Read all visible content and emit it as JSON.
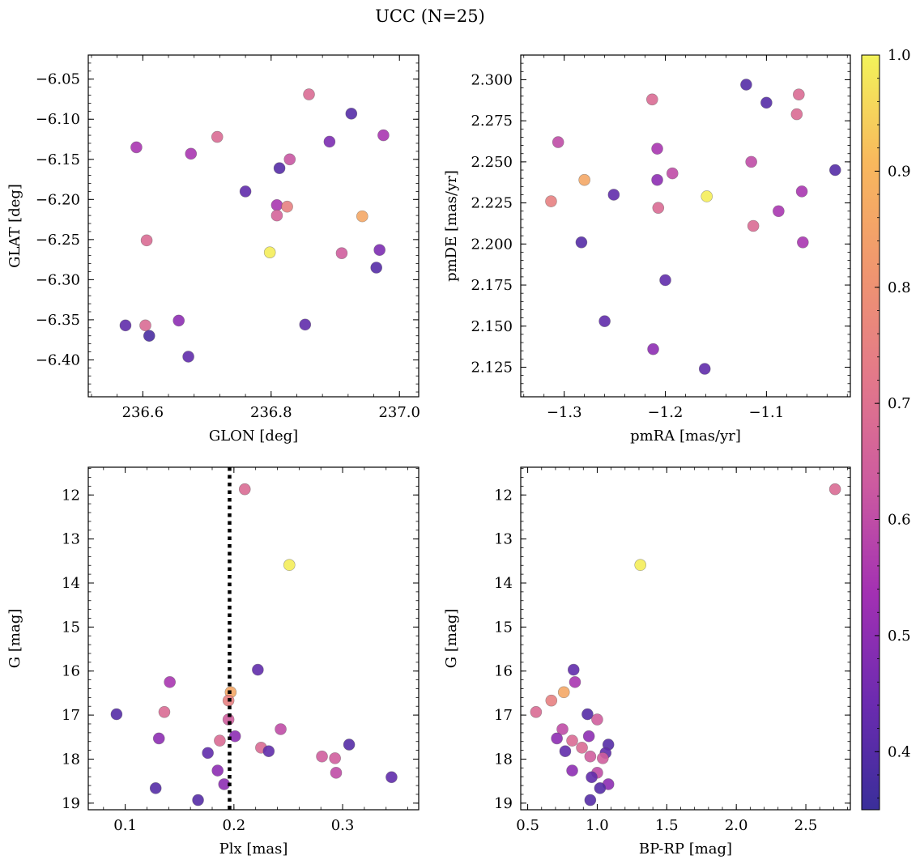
{
  "figure": {
    "title": "UCC (N=25)"
  },
  "colorbar": {
    "min": 0.35,
    "max": 1.0,
    "ticks": [
      0.4,
      0.5,
      0.6,
      0.7,
      0.8,
      0.9,
      1.0
    ],
    "tick_labels": [
      "0.4",
      "0.5",
      "0.6",
      "0.7",
      "0.8",
      "0.9",
      "1.0"
    ],
    "colormap": "plasma-truncated",
    "stops": [
      "#3a2e9a",
      "#6c2bb0",
      "#a230b3",
      "#cc5aa0",
      "#e3788a",
      "#f0966f",
      "#f8b85d",
      "#f3f35a"
    ]
  },
  "chart_data": [
    {
      "type": "scatter",
      "title": "",
      "xlabel": "GLON [deg]",
      "ylabel": "GLAT [deg]",
      "xlim": [
        236.515,
        237.03
      ],
      "ylim": [
        -6.446,
        -6.02
      ],
      "xticks": [
        236.6,
        236.8,
        237.0
      ],
      "xtick_labels": [
        "236.6",
        "236.8",
        "237.0"
      ],
      "yticks": [
        -6.05,
        -6.1,
        -6.15,
        -6.2,
        -6.25,
        -6.3,
        -6.35,
        -6.4
      ],
      "ytick_labels": [
        "−6.05",
        "−6.10",
        "−6.15",
        "−6.20",
        "−6.25",
        "−6.30",
        "−6.35",
        "−6.40"
      ],
      "points": [
        {
          "x": 236.859,
          "y": -6.069,
          "c": 0.68
        },
        {
          "x": 236.925,
          "y": -6.093,
          "c": 0.4
        },
        {
          "x": 236.975,
          "y": -6.12,
          "c": 0.55
        },
        {
          "x": 236.716,
          "y": -6.122,
          "c": 0.68
        },
        {
          "x": 236.891,
          "y": -6.128,
          "c": 0.47
        },
        {
          "x": 236.59,
          "y": -6.135,
          "c": 0.55
        },
        {
          "x": 236.675,
          "y": -6.143,
          "c": 0.55
        },
        {
          "x": 236.829,
          "y": -6.15,
          "c": 0.62
        },
        {
          "x": 236.813,
          "y": -6.161,
          "c": 0.4
        },
        {
          "x": 236.76,
          "y": -6.19,
          "c": 0.42
        },
        {
          "x": 236.809,
          "y": -6.207,
          "c": 0.55
        },
        {
          "x": 236.825,
          "y": -6.209,
          "c": 0.75
        },
        {
          "x": 236.809,
          "y": -6.22,
          "c": 0.66
        },
        {
          "x": 236.942,
          "y": -6.221,
          "c": 0.86
        },
        {
          "x": 236.606,
          "y": -6.251,
          "c": 0.68
        },
        {
          "x": 236.969,
          "y": -6.263,
          "c": 0.47
        },
        {
          "x": 236.798,
          "y": -6.266,
          "c": 0.99
        },
        {
          "x": 236.91,
          "y": -6.267,
          "c": 0.64
        },
        {
          "x": 236.964,
          "y": -6.285,
          "c": 0.4
        },
        {
          "x": 236.656,
          "y": -6.351,
          "c": 0.5
        },
        {
          "x": 236.853,
          "y": -6.356,
          "c": 0.42
        },
        {
          "x": 236.573,
          "y": -6.357,
          "c": 0.42
        },
        {
          "x": 236.604,
          "y": -6.357,
          "c": 0.68
        },
        {
          "x": 236.61,
          "y": -6.37,
          "c": 0.38
        },
        {
          "x": 236.671,
          "y": -6.396,
          "c": 0.42
        }
      ]
    },
    {
      "type": "scatter",
      "title": "",
      "xlabel": "pmRA [mas/yr]",
      "ylabel": "pmDE [mas/yr]",
      "xlim": [
        -1.343,
        -1.017
      ],
      "ylim": [
        2.107,
        2.315
      ],
      "xticks": [
        -1.3,
        -1.2,
        -1.1
      ],
      "xtick_labels": [
        "−1.3",
        "−1.2",
        "−1.1"
      ],
      "yticks": [
        2.125,
        2.15,
        2.175,
        2.2,
        2.225,
        2.25,
        2.275,
        2.3
      ],
      "ytick_labels": [
        "2.125",
        "2.150",
        "2.175",
        "2.200",
        "2.225",
        "2.250",
        "2.275",
        "2.300"
      ],
      "points": [
        {
          "x": -1.12,
          "y": 2.297,
          "c": 0.4
        },
        {
          "x": -1.068,
          "y": 2.291,
          "c": 0.68
        },
        {
          "x": -1.213,
          "y": 2.288,
          "c": 0.68
        },
        {
          "x": -1.1,
          "y": 2.286,
          "c": 0.4
        },
        {
          "x": -1.07,
          "y": 2.279,
          "c": 0.68
        },
        {
          "x": -1.306,
          "y": 2.262,
          "c": 0.6
        },
        {
          "x": -1.208,
          "y": 2.258,
          "c": 0.55
        },
        {
          "x": -1.115,
          "y": 2.25,
          "c": 0.6
        },
        {
          "x": -1.032,
          "y": 2.245,
          "c": 0.4
        },
        {
          "x": -1.193,
          "y": 2.243,
          "c": 0.6
        },
        {
          "x": -1.28,
          "y": 2.239,
          "c": 0.86
        },
        {
          "x": -1.208,
          "y": 2.239,
          "c": 0.5
        },
        {
          "x": -1.065,
          "y": 2.232,
          "c": 0.55
        },
        {
          "x": -1.251,
          "y": 2.23,
          "c": 0.42
        },
        {
          "x": -1.159,
          "y": 2.229,
          "c": 0.99
        },
        {
          "x": -1.313,
          "y": 2.226,
          "c": 0.75
        },
        {
          "x": -1.207,
          "y": 2.222,
          "c": 0.68
        },
        {
          "x": -1.088,
          "y": 2.22,
          "c": 0.55
        },
        {
          "x": -1.113,
          "y": 2.211,
          "c": 0.68
        },
        {
          "x": -1.283,
          "y": 2.201,
          "c": 0.4
        },
        {
          "x": -1.064,
          "y": 2.201,
          "c": 0.55
        },
        {
          "x": -1.2,
          "y": 2.178,
          "c": 0.42
        },
        {
          "x": -1.26,
          "y": 2.153,
          "c": 0.42
        },
        {
          "x": -1.212,
          "y": 2.136,
          "c": 0.5
        },
        {
          "x": -1.161,
          "y": 2.124,
          "c": 0.42
        }
      ]
    },
    {
      "type": "scatter",
      "title": "",
      "xlabel": "Plx [mas]",
      "ylabel": "G [mag]",
      "xlim": [
        0.066,
        0.37
      ],
      "ylim": [
        19.15,
        11.37
      ],
      "y_inverted": true,
      "xticks": [
        0.1,
        0.2,
        0.3
      ],
      "xtick_labels": [
        "0.1",
        "0.2",
        "0.3"
      ],
      "yticks": [
        12,
        13,
        14,
        15,
        16,
        17,
        18,
        19
      ],
      "ytick_labels": [
        "12",
        "13",
        "14",
        "15",
        "16",
        "17",
        "18",
        "19"
      ],
      "vline": {
        "x": 0.196,
        "style": "dotted",
        "color": "#000000"
      },
      "points": [
        {
          "x": 0.21,
          "y": 11.87,
          "c": 0.68
        },
        {
          "x": 0.251,
          "y": 13.59,
          "c": 0.99
        },
        {
          "x": 0.222,
          "y": 15.97,
          "c": 0.42
        },
        {
          "x": 0.141,
          "y": 16.25,
          "c": 0.55
        },
        {
          "x": 0.197,
          "y": 16.48,
          "c": 0.86
        },
        {
          "x": 0.195,
          "y": 16.67,
          "c": 0.75
        },
        {
          "x": 0.136,
          "y": 16.93,
          "c": 0.68
        },
        {
          "x": 0.092,
          "y": 16.98,
          "c": 0.4
        },
        {
          "x": 0.195,
          "y": 17.1,
          "c": 0.64
        },
        {
          "x": 0.243,
          "y": 17.32,
          "c": 0.6
        },
        {
          "x": 0.201,
          "y": 17.48,
          "c": 0.5
        },
        {
          "x": 0.131,
          "y": 17.53,
          "c": 0.5
        },
        {
          "x": 0.187,
          "y": 17.58,
          "c": 0.68
        },
        {
          "x": 0.306,
          "y": 17.67,
          "c": 0.4
        },
        {
          "x": 0.225,
          "y": 17.74,
          "c": 0.68
        },
        {
          "x": 0.232,
          "y": 17.82,
          "c": 0.42
        },
        {
          "x": 0.176,
          "y": 17.86,
          "c": 0.42
        },
        {
          "x": 0.281,
          "y": 17.94,
          "c": 0.64
        },
        {
          "x": 0.293,
          "y": 17.98,
          "c": 0.64
        },
        {
          "x": 0.185,
          "y": 18.26,
          "c": 0.5
        },
        {
          "x": 0.294,
          "y": 18.31,
          "c": 0.6
        },
        {
          "x": 0.345,
          "y": 18.41,
          "c": 0.42
        },
        {
          "x": 0.191,
          "y": 18.57,
          "c": 0.5
        },
        {
          "x": 0.128,
          "y": 18.66,
          "c": 0.4
        },
        {
          "x": 0.167,
          "y": 18.93,
          "c": 0.4
        }
      ]
    },
    {
      "type": "scatter",
      "title": "",
      "xlabel": "BP-RP [mag]",
      "ylabel": "G [mag]",
      "xlim": [
        0.45,
        2.82
      ],
      "ylim": [
        19.15,
        11.37
      ],
      "y_inverted": true,
      "xticks": [
        0.5,
        1.0,
        1.5,
        2.0,
        2.5
      ],
      "xtick_labels": [
        "0.5",
        "1.0",
        "1.5",
        "2.0",
        "2.5"
      ],
      "yticks": [
        12,
        13,
        14,
        15,
        16,
        17,
        18,
        19
      ],
      "ytick_labels": [
        "12",
        "13",
        "14",
        "15",
        "16",
        "17",
        "18",
        "19"
      ],
      "points": [
        {
          "x": 2.71,
          "y": 11.87,
          "c": 0.68
        },
        {
          "x": 1.31,
          "y": 13.59,
          "c": 0.99
        },
        {
          "x": 0.83,
          "y": 15.97,
          "c": 0.42
        },
        {
          "x": 0.84,
          "y": 16.25,
          "c": 0.55
        },
        {
          "x": 0.76,
          "y": 16.48,
          "c": 0.86
        },
        {
          "x": 0.67,
          "y": 16.67,
          "c": 0.75
        },
        {
          "x": 0.56,
          "y": 16.93,
          "c": 0.68
        },
        {
          "x": 0.93,
          "y": 16.98,
          "c": 0.4
        },
        {
          "x": 1.0,
          "y": 17.1,
          "c": 0.64
        },
        {
          "x": 0.75,
          "y": 17.32,
          "c": 0.6
        },
        {
          "x": 0.94,
          "y": 17.48,
          "c": 0.5
        },
        {
          "x": 0.71,
          "y": 17.53,
          "c": 0.5
        },
        {
          "x": 0.82,
          "y": 17.58,
          "c": 0.68
        },
        {
          "x": 1.08,
          "y": 17.67,
          "c": 0.4
        },
        {
          "x": 0.89,
          "y": 17.74,
          "c": 0.68
        },
        {
          "x": 0.77,
          "y": 17.82,
          "c": 0.42
        },
        {
          "x": 1.06,
          "y": 17.86,
          "c": 0.42
        },
        {
          "x": 0.95,
          "y": 17.94,
          "c": 0.64
        },
        {
          "x": 1.04,
          "y": 17.98,
          "c": 0.64
        },
        {
          "x": 0.82,
          "y": 18.26,
          "c": 0.5
        },
        {
          "x": 1.0,
          "y": 18.31,
          "c": 0.6
        },
        {
          "x": 0.96,
          "y": 18.41,
          "c": 0.42
        },
        {
          "x": 1.08,
          "y": 18.57,
          "c": 0.5
        },
        {
          "x": 1.02,
          "y": 18.66,
          "c": 0.4
        },
        {
          "x": 0.95,
          "y": 18.93,
          "c": 0.4
        }
      ]
    }
  ]
}
